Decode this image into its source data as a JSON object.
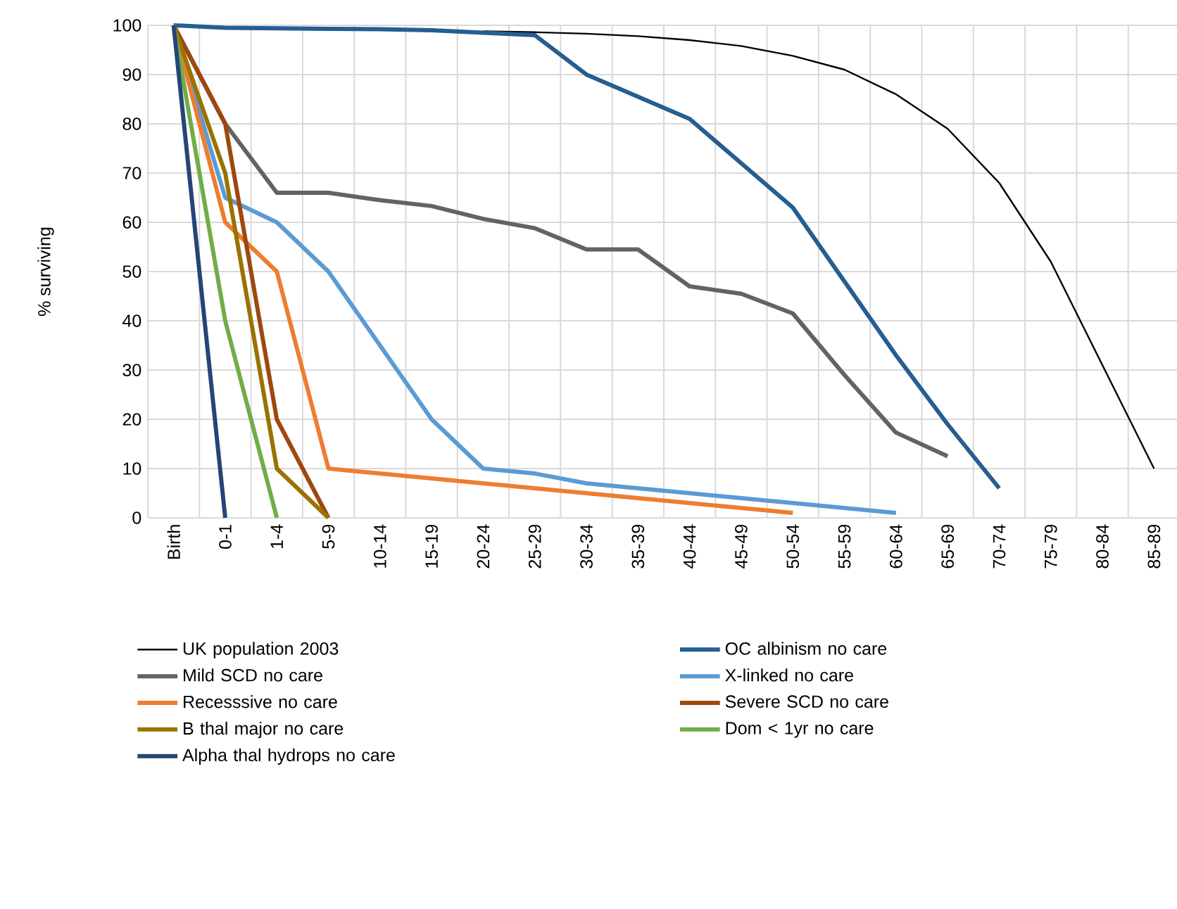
{
  "chart_data": {
    "type": "line",
    "ylabel": "% surviving",
    "categories": [
      "Birth",
      "0-1",
      "1-4",
      "5-9",
      "10-14",
      "15-19",
      "20-24",
      "25-29",
      "30-34",
      "35-39",
      "40-44",
      "45-49",
      "50-54",
      "55-59",
      "60-64",
      "65-69",
      "70-74",
      "75-79",
      "80-84",
      "85-89"
    ],
    "ylim": [
      0,
      100
    ],
    "yticks": [
      0,
      10,
      20,
      30,
      40,
      50,
      60,
      70,
      80,
      90,
      100
    ],
    "grid": true,
    "legend": "bottom",
    "marker": "none",
    "line_style": "solid",
    "series": [
      {
        "name": "UK population 2003",
        "color": "#000000",
        "values": [
          null,
          null,
          null,
          null,
          null,
          null,
          98.8,
          98.6,
          98.3,
          97.8,
          97,
          95.8,
          93.8,
          91,
          86,
          79,
          68,
          52,
          31,
          10
        ]
      },
      {
        "name": "OC albinism no care",
        "color": "#255e91",
        "values": [
          100,
          99.5,
          99.4,
          99.3,
          99.2,
          99,
          98.5,
          98,
          90,
          85.5,
          81,
          72,
          63,
          48,
          33,
          19,
          6,
          null,
          null,
          null
        ]
      },
      {
        "name": "Mild SCD no care",
        "color": "#636363",
        "values": [
          100,
          80,
          66,
          66,
          64.5,
          63.3,
          60.7,
          58.8,
          54.5,
          54.5,
          47,
          45.5,
          41.5,
          29,
          17.3,
          12.5,
          null,
          null,
          null,
          null
        ]
      },
      {
        "name": "X-linked no care",
        "color": "#5b9bd5",
        "values": [
          100,
          65,
          60,
          50,
          35,
          20,
          10,
          9,
          7,
          6,
          5,
          4,
          3,
          2,
          1,
          null,
          null,
          null,
          null,
          null
        ]
      },
      {
        "name": "Recesssive no care",
        "color": "#ed7d31",
        "values": [
          100,
          60,
          50,
          10,
          9,
          8,
          7,
          6,
          5,
          4,
          3,
          2,
          1,
          null,
          null,
          null,
          null,
          null,
          null,
          null
        ]
      },
      {
        "name": "Severe SCD no care",
        "color": "#9e480e",
        "values": [
          100,
          80,
          20,
          0,
          null,
          null,
          null,
          null,
          null,
          null,
          null,
          null,
          null,
          null,
          null,
          null,
          null,
          null,
          null,
          null
        ]
      },
      {
        "name": "B thal major no care",
        "color": "#997300",
        "values": [
          100,
          70,
          10,
          0,
          null,
          null,
          null,
          null,
          null,
          null,
          null,
          null,
          null,
          null,
          null,
          null,
          null,
          null,
          null,
          null
        ]
      },
      {
        "name": "Dom < 1yr no care",
        "color": "#70ad47",
        "values": [
          100,
          40,
          0,
          null,
          null,
          null,
          null,
          null,
          null,
          null,
          null,
          null,
          null,
          null,
          null,
          null,
          null,
          null,
          null,
          null
        ]
      },
      {
        "name": "Alpha thal hydrops no care",
        "color": "#264478",
        "values": [
          100,
          0,
          null,
          null,
          null,
          null,
          null,
          null,
          null,
          null,
          null,
          null,
          null,
          null,
          null,
          null,
          null,
          null,
          null,
          null
        ]
      }
    ]
  }
}
